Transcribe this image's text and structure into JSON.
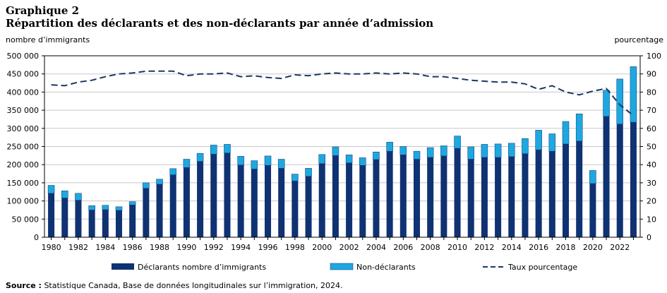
{
  "title_line1": "Graphique 2",
  "title_line2": "Répartition des déclarants et des non-déclarants par année d’admission",
  "source_label": "Source :",
  "source_text": "Statistique Canada, Base de données longitudinales sur l’immigration, 2024.",
  "colors": {
    "declarants": "#0f3273",
    "non_declarants": "#1ea8e0",
    "taux": "#1a3864"
  },
  "chart_data": {
    "type": "bar",
    "stacked": true,
    "x": [
      1980,
      1981,
      1982,
      1983,
      1984,
      1985,
      1986,
      1987,
      1988,
      1989,
      1990,
      1991,
      1992,
      1993,
      1994,
      1995,
      1996,
      1997,
      1998,
      1999,
      2000,
      2001,
      2002,
      2003,
      2004,
      2005,
      2006,
      2007,
      2008,
      2009,
      2010,
      2011,
      2012,
      2013,
      2014,
      2015,
      2016,
      2017,
      2018,
      2019,
      2020,
      2021,
      2022,
      2023
    ],
    "x_tick_labels": [
      "1980",
      "1982",
      "1984",
      "1986",
      "1988",
      "1990",
      "1992",
      "1994",
      "1996",
      "1998",
      "2000",
      "2002",
      "2004",
      "2006",
      "2008",
      "2010",
      "2012",
      "2014",
      "2016",
      "2018",
      "2020",
      "2022"
    ],
    "y_left_label": "nombre d’immigrants",
    "y_left_ticks": [
      "0",
      "50 000",
      "100 000",
      "150 000",
      "200 000",
      "250 000",
      "300 000",
      "350 000",
      "400 000",
      "450 000",
      "500 000"
    ],
    "y_left_lim": [
      0,
      500000
    ],
    "y_right_label": "pourcentage",
    "y_right_ticks": [
      "0",
      "10",
      "20",
      "30",
      "40",
      "50",
      "60",
      "70",
      "80",
      "90",
      "100"
    ],
    "y_right_lim": [
      0,
      100
    ],
    "grid": "horizontal",
    "legend_position": "bottom",
    "series": [
      {
        "name": "Déclarants nombre d’immigrants",
        "type": "bar",
        "axis": "left",
        "values": [
          121000,
          108000,
          102000,
          75000,
          76000,
          74000,
          89000,
          135000,
          146000,
          172000,
          192000,
          209000,
          229000,
          232000,
          199000,
          188000,
          198000,
          190000,
          155000,
          168000,
          203000,
          225000,
          205000,
          198000,
          214000,
          237000,
          227000,
          215000,
          220000,
          224000,
          245000,
          215000,
          220000,
          220000,
          222000,
          230000,
          241000,
          237000,
          257000,
          265000,
          148000,
          333000,
          312000,
          317000
        ]
      },
      {
        "name": "Non-déclarants",
        "type": "bar",
        "axis": "left",
        "values": [
          22000,
          20000,
          19000,
          12000,
          12000,
          10000,
          9000,
          15000,
          14000,
          17000,
          23000,
          22000,
          25000,
          24000,
          24000,
          23000,
          26000,
          25000,
          19000,
          22000,
          25000,
          24000,
          22000,
          21000,
          21000,
          25000,
          23000,
          22000,
          27000,
          28000,
          34000,
          34000,
          36000,
          37000,
          37000,
          42000,
          54000,
          48000,
          62000,
          75000,
          36000,
          72000,
          124000,
          153000
        ]
      },
      {
        "name": "Taux pourcentage",
        "type": "line",
        "axis": "right",
        "values": [
          84,
          83.5,
          85.5,
          86.5,
          88.5,
          90,
          90.5,
          91.5,
          91.5,
          91.5,
          89,
          90,
          90,
          90.5,
          88.5,
          89,
          88,
          87.5,
          89.5,
          89,
          90,
          90.5,
          90,
          90,
          90.5,
          90,
          90.5,
          90,
          88.5,
          88.5,
          87.5,
          86.5,
          86,
          85.5,
          85.5,
          84.5,
          81.5,
          83.5,
          80,
          78.5,
          80.5,
          82,
          73,
          67
        ]
      }
    ]
  }
}
